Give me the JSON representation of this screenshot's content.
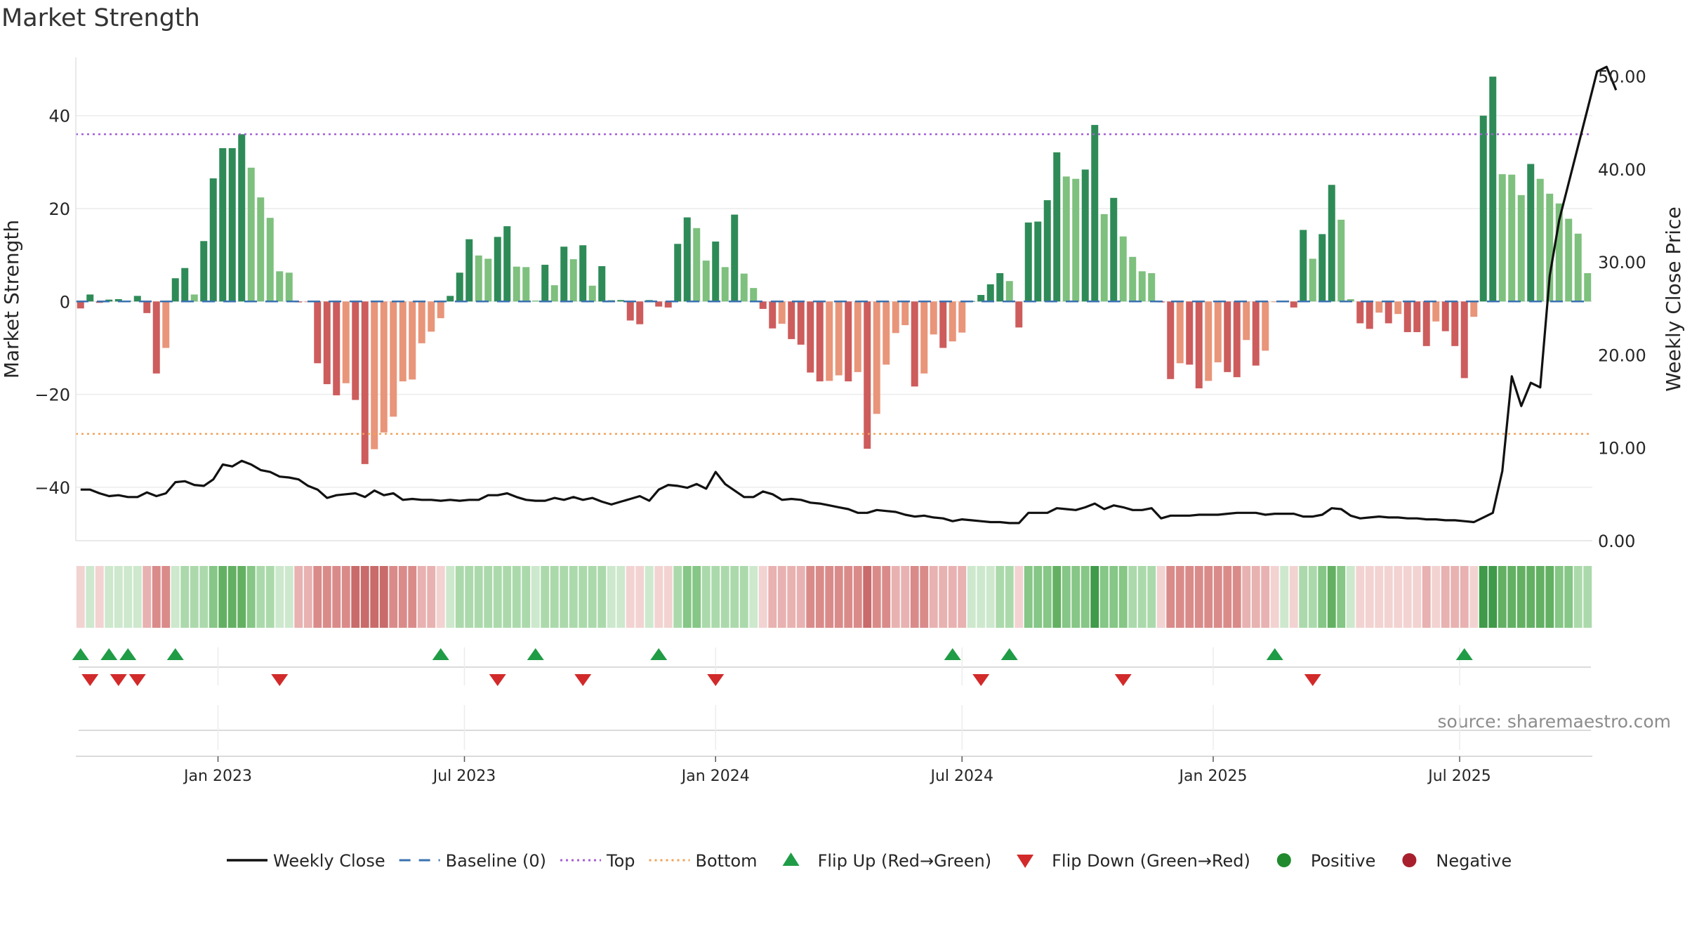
{
  "chart_data": {
    "type": "bar",
    "title": "Market Strength",
    "source_note": "source: sharemaestro.com",
    "ylabel": "Market Strength",
    "y2label": "Weekly Close Price",
    "ylim": [
      -51.5,
      52.5
    ],
    "y2lim": [
      0,
      52
    ],
    "yticks": [
      "40",
      "20",
      "0",
      "−20",
      "−40"
    ],
    "yticks_values": [
      40,
      20,
      0,
      -20,
      -40
    ],
    "y2ticks": [
      "50.00",
      "40.00",
      "30.00",
      "20.00",
      "10.00",
      "0.00"
    ],
    "y2ticks_values": [
      50,
      40,
      30,
      20,
      10,
      0
    ],
    "xticks": [
      "Jan 2023",
      "Jul 2023",
      "Jan 2024",
      "Jul 2024",
      "Jan 2025",
      "Jul 2025"
    ],
    "xticks_values": [
      15.0,
      41.0,
      67.5,
      93.5,
      120.0,
      146.0
    ],
    "top_threshold": 36,
    "bottom_threshold": -28.5,
    "baseline": 0,
    "strength": [
      -1.5,
      1.5,
      -0.3,
      0.4,
      0.5,
      0.2,
      1.2,
      -2.5,
      -15.5,
      -10,
      5,
      7.2,
      1.5,
      13,
      26.5,
      33,
      33,
      36,
      28.8,
      22.4,
      18,
      6.5,
      6.2,
      -0.2,
      -0.1,
      -13.3,
      -17.8,
      -20.2,
      -17.6,
      -21.2,
      -35,
      -31.8,
      -28.2,
      -24.8,
      -17.2,
      -16.8,
      -9,
      -6.5,
      -3.6,
      1.2,
      6.2,
      13.4,
      9.9,
      9.2,
      13.9,
      16.2,
      7.5,
      7.4,
      0.2,
      7.9,
      3.5,
      11.8,
      9.1,
      12.1,
      3.4,
      7.6,
      0.3,
      0.3,
      -4.1,
      -4.9,
      0.3,
      -1.1,
      -1.3,
      12.4,
      18.1,
      15.8,
      8.8,
      12.9,
      7.4,
      18.7,
      6,
      2.9,
      -1.6,
      -5.8,
      -4.8,
      -8.1,
      -9.3,
      -15.3,
      -17.2,
      -17.1,
      -15.9,
      -17.2,
      -15.2,
      -31.7,
      -24.2,
      -13.6,
      -6.8,
      -5.1,
      -18.3,
      -15.5,
      -7.1,
      -10,
      -8.6,
      -6.7,
      0.1,
      1.4,
      3.7,
      6.1,
      4.4,
      -5.6,
      17,
      17.2,
      21.8,
      32.1,
      26.9,
      26.4,
      28.4,
      38,
      18.8,
      22.3,
      14,
      9.6,
      6.5,
      6.1,
      -0.2,
      -16.7,
      -13.3,
      -13.6,
      -18.7,
      -17.1,
      -13.1,
      -15.2,
      -16.3,
      -8.3,
      -13.8,
      -10.6,
      -0.1,
      0.1,
      -1.3,
      15.4,
      9.2,
      14.5,
      25.1,
      17.6,
      0.5,
      -4.7,
      -5.9,
      -2.4,
      -4.7,
      -2.7,
      -6.6,
      -6.6,
      -9.6,
      -4.3,
      -6.4,
      -9.6,
      -16.5,
      -3.3,
      40,
      48.4,
      27.4,
      27.3,
      22.9,
      29.6,
      26.4,
      23.2,
      21.1,
      17.8,
      14.6,
      6.1
    ],
    "weekly_close": [
      5.5,
      5.5,
      5.1,
      4.8,
      4.9,
      4.7,
      4.7,
      5.2,
      4.8,
      5.1,
      6.3,
      6.4,
      6.0,
      5.9,
      6.6,
      8.2,
      8.0,
      8.6,
      8.2,
      7.6,
      7.4,
      6.9,
      6.8,
      6.6,
      5.9,
      5.5,
      4.6,
      4.9,
      5.0,
      5.1,
      4.7,
      5.4,
      4.9,
      5.1,
      4.4,
      4.5,
      4.4,
      4.4,
      4.3,
      4.4,
      4.3,
      4.4,
      4.4,
      4.9,
      4.9,
      5.1,
      4.7,
      4.4,
      4.3,
      4.3,
      4.6,
      4.4,
      4.7,
      4.4,
      4.6,
      4.2,
      3.9,
      4.2,
      4.5,
      4.8,
      4.3,
      5.5,
      6.0,
      5.9,
      5.7,
      6.1,
      5.6,
      7.4,
      6.1,
      5.4,
      4.7,
      4.7,
      5.3,
      5.0,
      4.4,
      4.5,
      4.4,
      4.1,
      4.0,
      3.8,
      3.6,
      3.4,
      3.0,
      3.0,
      3.3,
      3.2,
      3.1,
      2.8,
      2.6,
      2.7,
      2.5,
      2.4,
      2.1,
      2.3,
      2.2,
      2.1,
      2.0,
      2.0,
      1.9,
      1.9,
      3.0,
      3.0,
      3.0,
      3.5,
      3.4,
      3.3,
      3.6,
      4.0,
      3.4,
      3.8,
      3.6,
      3.3,
      3.3,
      3.5,
      2.4,
      2.7,
      2.7,
      2.7,
      2.8,
      2.8,
      2.8,
      2.9,
      3.0,
      3.0,
      3.0,
      2.8,
      2.9,
      2.9,
      2.9,
      2.6,
      2.6,
      2.8,
      3.5,
      3.4,
      2.7,
      2.4,
      2.5,
      2.6,
      2.5,
      2.5,
      2.4,
      2.4,
      2.3,
      2.3,
      2.2,
      2.2,
      2.1,
      2.0,
      2.5,
      3.0,
      7.5,
      17.7,
      14.5,
      17.0,
      16.5,
      28.5,
      34.5,
      38.5,
      42.5,
      46.5,
      50.5,
      51.0,
      48.5
    ],
    "heat_levels": [
      2,
      2,
      2,
      2,
      2,
      2,
      2,
      3,
      4,
      4,
      2,
      3,
      3,
      3,
      4,
      5,
      5,
      5,
      4,
      3,
      3,
      2,
      2,
      3,
      3,
      4,
      4,
      4,
      4,
      5,
      5,
      5,
      5,
      4,
      4,
      4,
      3,
      3,
      2,
      2,
      3,
      3,
      3,
      3,
      3,
      3,
      3,
      3,
      2,
      3,
      3,
      3,
      3,
      3,
      3,
      3,
      2,
      2,
      2,
      2,
      2,
      2,
      2,
      3,
      4,
      4,
      3,
      3,
      3,
      3,
      3,
      2,
      2,
      3,
      3,
      3,
      3,
      4,
      4,
      4,
      4,
      4,
      4,
      5,
      4,
      4,
      3,
      3,
      4,
      4,
      3,
      3,
      3,
      3,
      2,
      2,
      2,
      3,
      3,
      2,
      4,
      4,
      4,
      5,
      4,
      4,
      4,
      6,
      4,
      4,
      4,
      3,
      3,
      3,
      2,
      4,
      4,
      4,
      4,
      4,
      4,
      4,
      4,
      3,
      3,
      3,
      2,
      2,
      2,
      3,
      3,
      4,
      5,
      4,
      2,
      2,
      2,
      2,
      2,
      2,
      2,
      2,
      3,
      2,
      3,
      3,
      3,
      2,
      6,
      7,
      5,
      5,
      5,
      5,
      5,
      5,
      4,
      4,
      3,
      3
    ],
    "flip_up_index": [
      0,
      3,
      5,
      10,
      38,
      48,
      61,
      92,
      98,
      126,
      146
    ],
    "flip_down_index": [
      1,
      4,
      6,
      21,
      44,
      53,
      67,
      95,
      110,
      130
    ],
    "series": [
      {
        "name": "Market Strength (positive)",
        "color": "#2e8b57"
      },
      {
        "name": "Market Strength (negative)",
        "color": "#cd5c5c"
      },
      {
        "name": "Weekly Close",
        "color": "#111111"
      }
    ],
    "legend": [
      {
        "label": "Weekly Close",
        "symbol": "line",
        "color": "#111111"
      },
      {
        "label": "Baseline (0)",
        "symbol": "dash",
        "color": "#3a72b0"
      },
      {
        "label": "Top",
        "symbol": "dot",
        "color": "#a45ed6"
      },
      {
        "label": "Bottom",
        "symbol": "dot",
        "color": "#f0a25a"
      },
      {
        "label": "Flip Up (Red→Green)",
        "symbol": "tri-up",
        "color": "#1f9c45"
      },
      {
        "label": "Flip Down (Green→Red)",
        "symbol": "tri-down",
        "color": "#d22a2a"
      },
      {
        "label": "Positive",
        "symbol": "circle",
        "color": "#218a2e"
      },
      {
        "label": "Negative",
        "symbol": "circle",
        "color": "#a8202e"
      }
    ],
    "legend_position": "bottom-center",
    "grid": true
  }
}
